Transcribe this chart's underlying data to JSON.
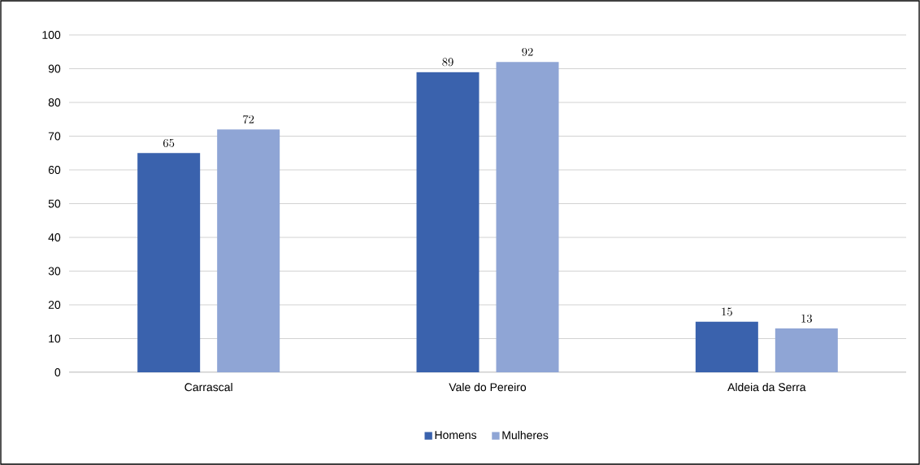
{
  "chart_data": {
    "type": "bar",
    "categories": [
      "Carrascal",
      "Vale do Pereiro",
      "Aldeia da Serra"
    ],
    "series": [
      {
        "name": "Homens",
        "color": "#3a62ad",
        "values": [
          65,
          89,
          15
        ]
      },
      {
        "name": "Mulheres",
        "color": "#8fa5d5",
        "values": [
          72,
          92,
          13
        ]
      }
    ],
    "ylim": [
      0,
      100
    ],
    "yticks": [
      0,
      10,
      20,
      30,
      40,
      50,
      60,
      70,
      80,
      90,
      100
    ],
    "grid": "y",
    "legend": "bottom",
    "data_labels": true
  }
}
